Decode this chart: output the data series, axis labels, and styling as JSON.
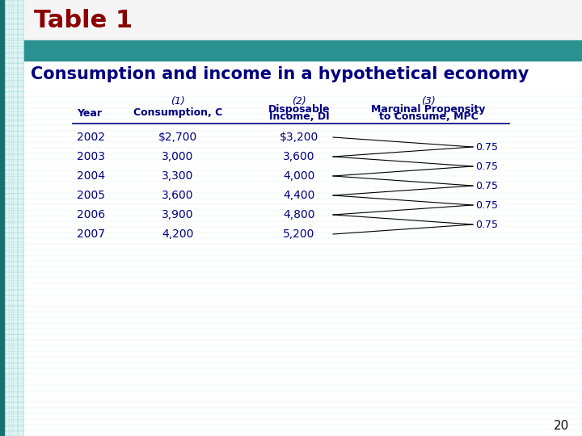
{
  "title1": "Table 1",
  "title2": "Consumption and income in a hypothetical economy",
  "years": [
    "2002",
    "2003",
    "2004",
    "2005",
    "2006",
    "2007"
  ],
  "consumption": [
    "$2,700",
    "3,000",
    "3,300",
    "3,600",
    "3,900",
    "4,200"
  ],
  "income": [
    "$3,200",
    "3,600",
    "4,000",
    "4,400",
    "4,800",
    "5,200"
  ],
  "mpc_values": [
    "0.75",
    "0.75",
    "0.75",
    "0.75",
    "0.75"
  ],
  "bg_color": "#ffffff",
  "graph_paper_color": "#d0f0f0",
  "graph_line_color": "#b0dede",
  "header_text_color": "#000080",
  "table_text_color": "#000080",
  "title1_color": "#8B0000",
  "title2_color": "#000080",
  "teal_band_color": "#2a9090",
  "left_strip_color": "#1a7070",
  "title1_bg": "#f0f0f0",
  "page_number": "20",
  "col1_label": "(1)",
  "col2_label": "(2)",
  "col3_label": "(3)",
  "col1_header": "Consumption, C",
  "col2_header_line1": "Disposable",
  "col2_header_line2": "Income, DI",
  "col3_header_line1": "Marginal Propensity",
  "col3_header_line2": "to Consume, MPC",
  "year_header": "Year"
}
